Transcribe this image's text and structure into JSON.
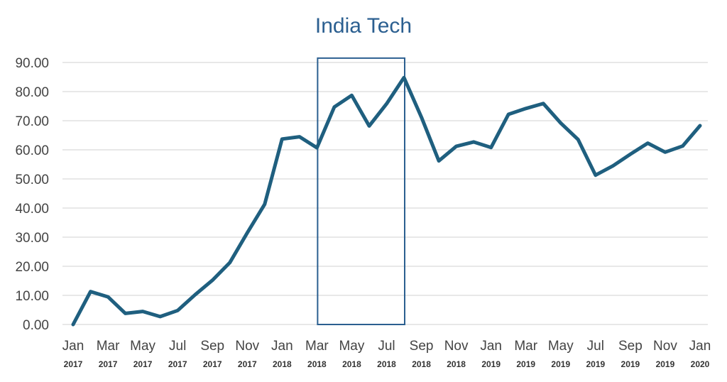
{
  "chart_data": {
    "type": "line",
    "title": "India Tech",
    "xlabel": "",
    "ylabel": "",
    "ylim": [
      0,
      90
    ],
    "y_ticks": [
      "0.00",
      "10.00",
      "20.00",
      "30.00",
      "40.00",
      "50.00",
      "60.00",
      "70.00",
      "80.00",
      "90.00"
    ],
    "grid": true,
    "legend": "none",
    "line_color": "#1f5f7f",
    "box_color": "#2b5f90",
    "x_tick_labels": [
      {
        "month": "Jan",
        "year": "2017"
      },
      {
        "month": "Mar",
        "year": "2017"
      },
      {
        "month": "May",
        "year": "2017"
      },
      {
        "month": "Jul",
        "year": "2017"
      },
      {
        "month": "Sep",
        "year": "2017"
      },
      {
        "month": "Nov",
        "year": "2017"
      },
      {
        "month": "Jan",
        "year": "2018"
      },
      {
        "month": "Mar",
        "year": "2018"
      },
      {
        "month": "May",
        "year": "2018"
      },
      {
        "month": "Jul",
        "year": "2018"
      },
      {
        "month": "Sep",
        "year": "2018"
      },
      {
        "month": "Nov",
        "year": "2018"
      },
      {
        "month": "Jan",
        "year": "2019"
      },
      {
        "month": "Mar",
        "year": "2019"
      },
      {
        "month": "May",
        "year": "2019"
      },
      {
        "month": "Jul",
        "year": "2019"
      },
      {
        "month": "Sep",
        "year": "2019"
      },
      {
        "month": "Nov",
        "year": "2019"
      },
      {
        "month": "Jan",
        "year": "2020"
      }
    ],
    "x": [
      "Jan 2017",
      "Feb 2017",
      "Mar 2017",
      "Apr 2017",
      "May 2017",
      "Jun 2017",
      "Jul 2017",
      "Aug 2017",
      "Sep 2017",
      "Oct 2017",
      "Nov 2017",
      "Dec 2017",
      "Jan 2018",
      "Feb 2018",
      "Mar 2018",
      "Apr 2018",
      "May 2018",
      "Jun 2018",
      "Jul 2018",
      "Aug 2018",
      "Sep 2018",
      "Oct 2018",
      "Nov 2018",
      "Dec 2018",
      "Jan 2019",
      "Feb 2019",
      "Mar 2019",
      "Apr 2019",
      "May 2019",
      "Jun 2019",
      "Jul 2019",
      "Aug 2019",
      "Sep 2019",
      "Oct 2019",
      "Nov 2019",
      "Dec 2019",
      "Jan 2020"
    ],
    "series": [
      {
        "values": [
          0.0,
          11.3,
          9.5,
          3.8,
          4.5,
          2.7,
          4.8,
          10.2,
          15.2,
          21.3,
          31.5,
          41.3,
          63.7,
          64.5,
          60.7,
          74.7,
          78.7,
          68.2,
          75.8,
          84.8,
          71.2,
          56.2,
          61.2,
          62.7,
          60.8,
          72.2,
          74.2,
          75.9,
          69.2,
          63.5,
          51.3,
          54.5,
          58.5,
          62.3,
          59.2,
          61.3,
          68.3
        ]
      }
    ],
    "highlight_box": {
      "x_start": "Mar 2018",
      "x_end": "Aug 2018",
      "y_range": [
        0,
        91.5
      ]
    }
  }
}
